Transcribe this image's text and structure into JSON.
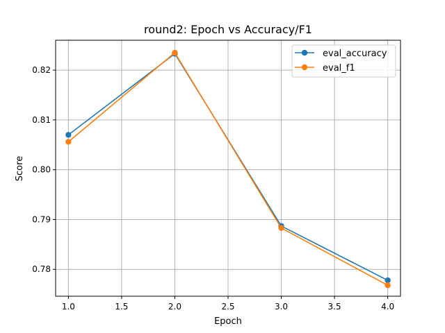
{
  "chart_data": {
    "type": "line",
    "title": "round2: Epoch vs Accuracy/F1",
    "xlabel": "Epoch",
    "ylabel": "Score",
    "x": [
      1.0,
      2.0,
      3.0,
      4.0
    ],
    "series": [
      {
        "name": "eval_accuracy",
        "color": "#1f77b4",
        "values": [
          0.807,
          0.8233,
          0.7887,
          0.7778
        ]
      },
      {
        "name": "eval_f1",
        "color": "#ff7f0e",
        "values": [
          0.8056,
          0.8235,
          0.7883,
          0.7768
        ]
      }
    ],
    "xlim": [
      0.88,
      4.12
    ],
    "ylim": [
      0.7746,
      0.826
    ],
    "xticks": [
      "1.0",
      "1.5",
      "2.0",
      "2.5",
      "3.0",
      "3.5",
      "4.0"
    ],
    "yticks": [
      "0.78",
      "0.79",
      "0.80",
      "0.81",
      "0.82"
    ],
    "grid": true,
    "legend_position": "top-right",
    "marker": "circle"
  }
}
